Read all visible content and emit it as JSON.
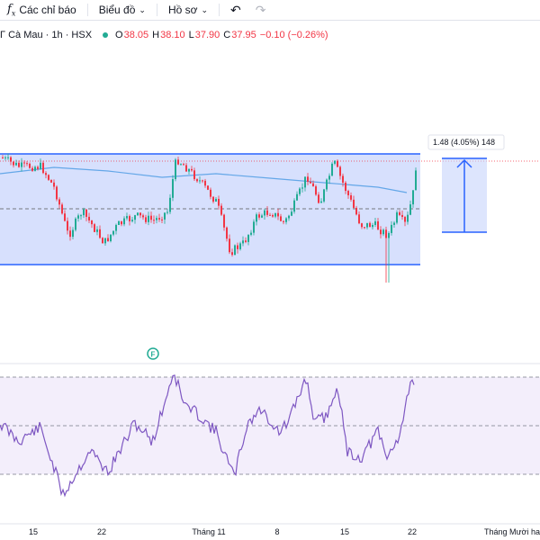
{
  "toolbar": {
    "fx_icon": "function-fx-icon",
    "indicators_label": "Các chỉ báo",
    "chart_type_label": "Biểu đồ",
    "template_label": "Hồ sơ"
  },
  "legend": {
    "symbol": "Γ Cà Mau · 1h · HSX",
    "status_color": "#22ab94",
    "open_label": "O",
    "open_value": "38.05",
    "high_label": "H",
    "high_value": "38.10",
    "low_label": "L",
    "low_value": "37.90",
    "close_label": "C",
    "close_value": "37.95",
    "change": "−0.10 (−0.26%)"
  },
  "measure": {
    "label": "1.48 (4.05%) 148"
  },
  "event_marker": {
    "label": "F"
  },
  "x_axis": {
    "labels": [
      "15",
      "22",
      "Tháng 11",
      "8",
      "15",
      "22",
      "Tháng Mười hai"
    ]
  },
  "colors": {
    "up": "#22ab94",
    "down": "#f23645",
    "channel": "#2962ff",
    "channel_fill": "#c6d3fc",
    "ma": "#64a7e8",
    "rsi": "#7e57c2",
    "rsi_fill": "#f3eefb"
  }
}
